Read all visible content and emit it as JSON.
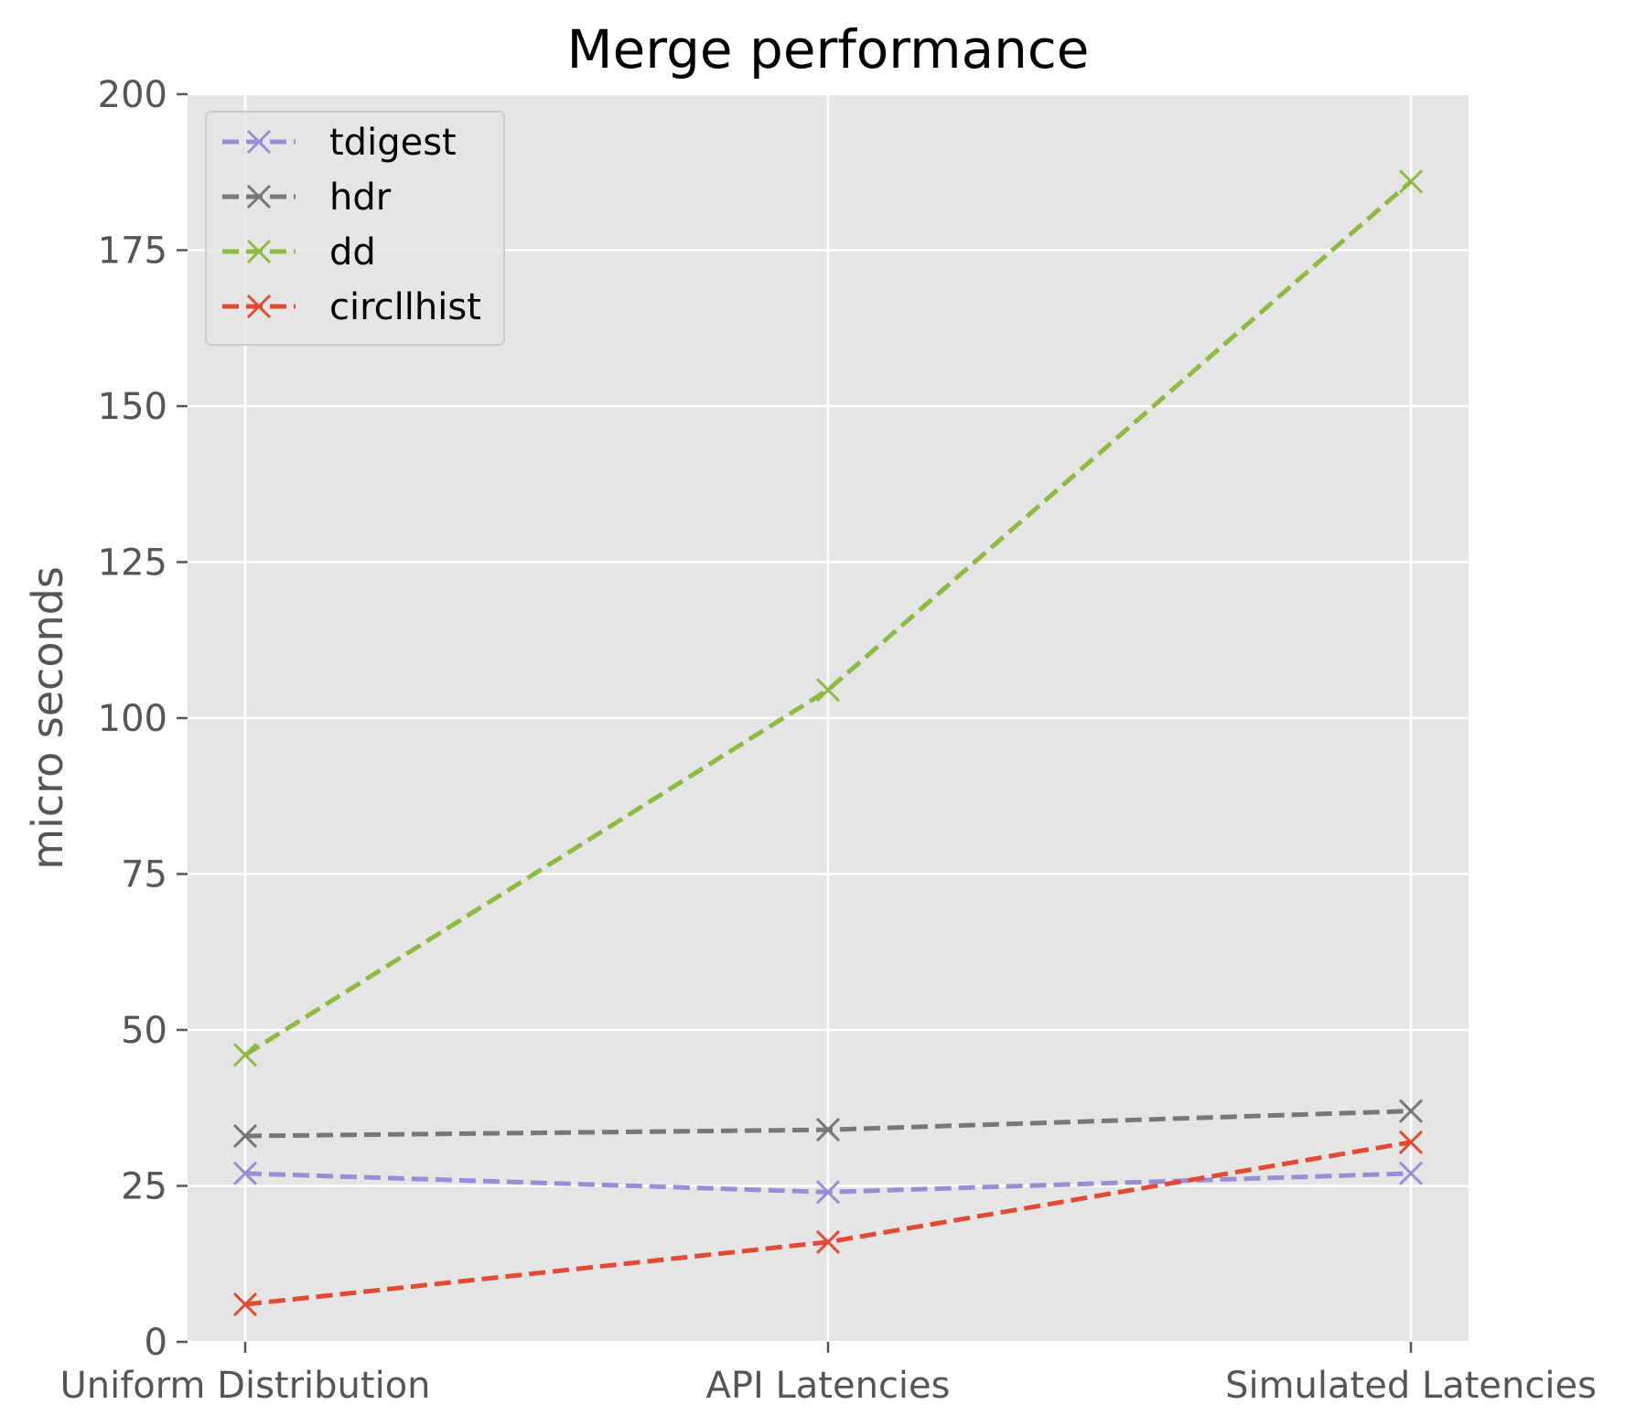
{
  "chart_data": {
    "type": "line",
    "title": "Merge performance",
    "xlabel": "",
    "ylabel": "micro seconds",
    "categories": [
      "Uniform Distribution",
      "API Latencies",
      "Simulated Latencies"
    ],
    "ylim": [
      0,
      200
    ],
    "yticks": [
      "0",
      "25",
      "50",
      "75",
      "100",
      "125",
      "150",
      "175",
      "200"
    ],
    "grid": true,
    "background": "#e5e5e5",
    "legend": {
      "placement": "top-left"
    },
    "marker": "x",
    "line_style": "dashed",
    "series": [
      {
        "name": "tdigest",
        "color": "#988ed5",
        "values": [
          27,
          24,
          27
        ]
      },
      {
        "name": "hdr",
        "color": "#777777",
        "values": [
          33,
          34,
          37
        ]
      },
      {
        "name": "dd",
        "color": "#8eba42",
        "values": [
          46,
          104.5,
          186
        ]
      },
      {
        "name": "circllhist",
        "color": "#e24a33",
        "values": [
          6,
          16,
          32
        ]
      }
    ]
  }
}
